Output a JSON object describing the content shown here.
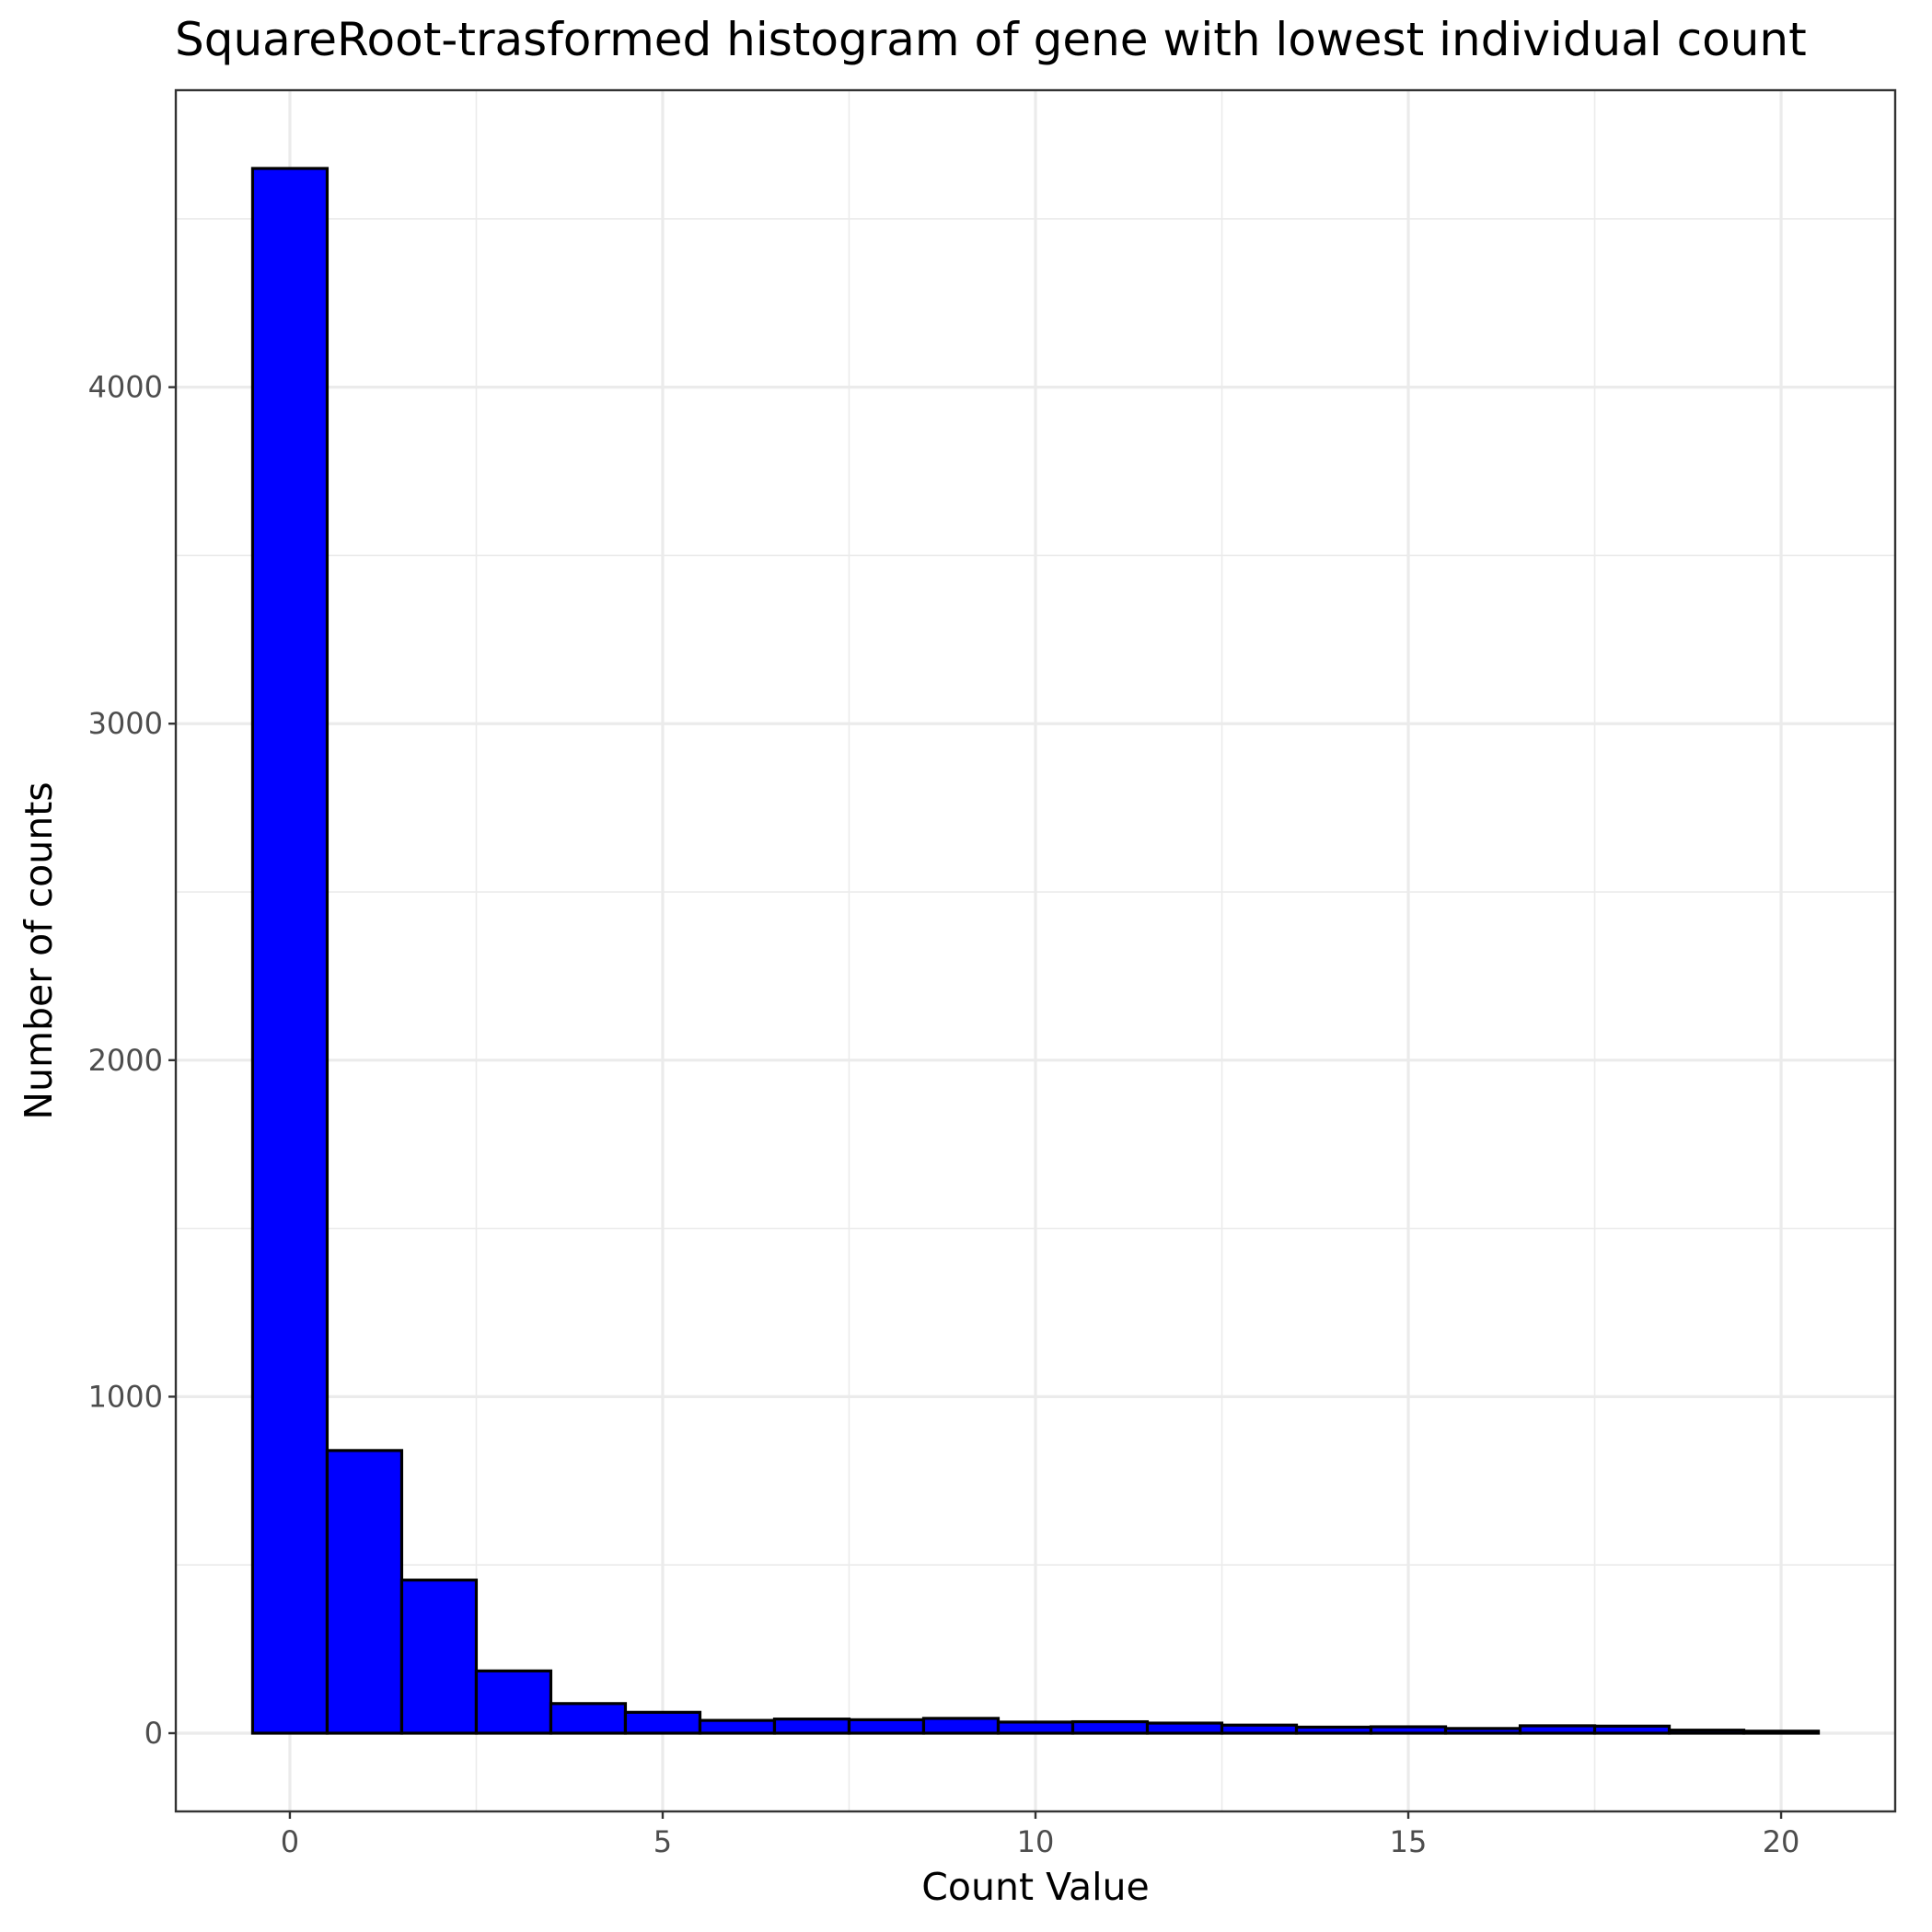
{
  "chart_data": {
    "type": "bar",
    "title": "SquareRoot-trasformed histogram of gene with lowest individual count",
    "xlabel": "Count Value",
    "ylabel": "Number of counts",
    "bin_width": 1,
    "bins": [
      {
        "x": 0,
        "count": 4650
      },
      {
        "x": 1,
        "count": 840
      },
      {
        "x": 2,
        "count": 455
      },
      {
        "x": 3,
        "count": 185
      },
      {
        "x": 4,
        "count": 88
      },
      {
        "x": 5,
        "count": 62
      },
      {
        "x": 6,
        "count": 38
      },
      {
        "x": 7,
        "count": 42
      },
      {
        "x": 8,
        "count": 40
      },
      {
        "x": 9,
        "count": 44
      },
      {
        "x": 10,
        "count": 33
      },
      {
        "x": 11,
        "count": 34
      },
      {
        "x": 12,
        "count": 30
      },
      {
        "x": 13,
        "count": 24
      },
      {
        "x": 14,
        "count": 18
      },
      {
        "x": 15,
        "count": 19
      },
      {
        "x": 16,
        "count": 14
      },
      {
        "x": 17,
        "count": 22
      },
      {
        "x": 18,
        "count": 21
      },
      {
        "x": 19,
        "count": 9
      },
      {
        "x": 20,
        "count": 6
      }
    ],
    "xlim": [
      -1.53,
      21.53
    ],
    "ylim": [
      -232.5,
      4882.5
    ],
    "x_ticks": [
      0,
      5,
      10,
      15,
      20
    ],
    "x_tick_labels": [
      "0",
      "5",
      "10",
      "15",
      "20"
    ],
    "y_ticks": [
      0,
      1000,
      2000,
      3000,
      4000
    ],
    "y_tick_labels": [
      "0",
      "1000",
      "2000",
      "3000",
      "4000"
    ],
    "grid": true,
    "bar_fill": "#0000ff",
    "bar_outline": "#000000",
    "panel_background": "#ffffff",
    "grid_color": "#ebebeb"
  }
}
